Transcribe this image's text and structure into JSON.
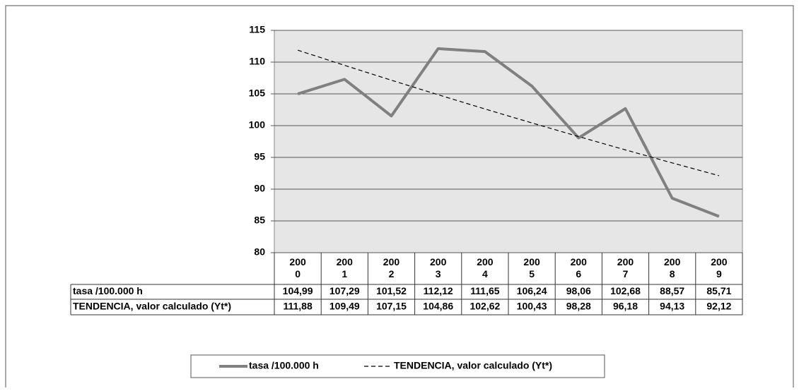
{
  "chart_data": {
    "type": "line",
    "categories": [
      "2000",
      "2001",
      "2002",
      "2003",
      "2004",
      "2005",
      "2006",
      "2007",
      "2008",
      "2009"
    ],
    "series": [
      {
        "name": "tasa /100.000 h",
        "color": "#808080",
        "values": [
          104.99,
          107.29,
          101.52,
          112.12,
          111.65,
          106.24,
          98.06,
          102.68,
          88.57,
          85.71
        ],
        "value_labels": [
          "104,99",
          "107,29",
          "101,52",
          "112,12",
          "111,65",
          "106,24",
          "98,06",
          "102,68",
          "88,57",
          "85,71"
        ]
      },
      {
        "name": "TENDENCIA, valor calculado (Yt*)",
        "color": "#000000",
        "dashed": true,
        "values": [
          111.88,
          109.49,
          107.15,
          104.86,
          102.62,
          100.43,
          98.28,
          96.18,
          94.13,
          92.12
        ],
        "value_labels": [
          "111,88",
          "109,49",
          "107,15",
          "104,86",
          "102,62",
          "100,43",
          "98,28",
          "96,18",
          "94,13",
          "92,12"
        ]
      }
    ],
    "ylim": [
      80,
      115
    ],
    "yticks": [
      80,
      85,
      90,
      95,
      100,
      105,
      110,
      115
    ],
    "grid": true
  }
}
